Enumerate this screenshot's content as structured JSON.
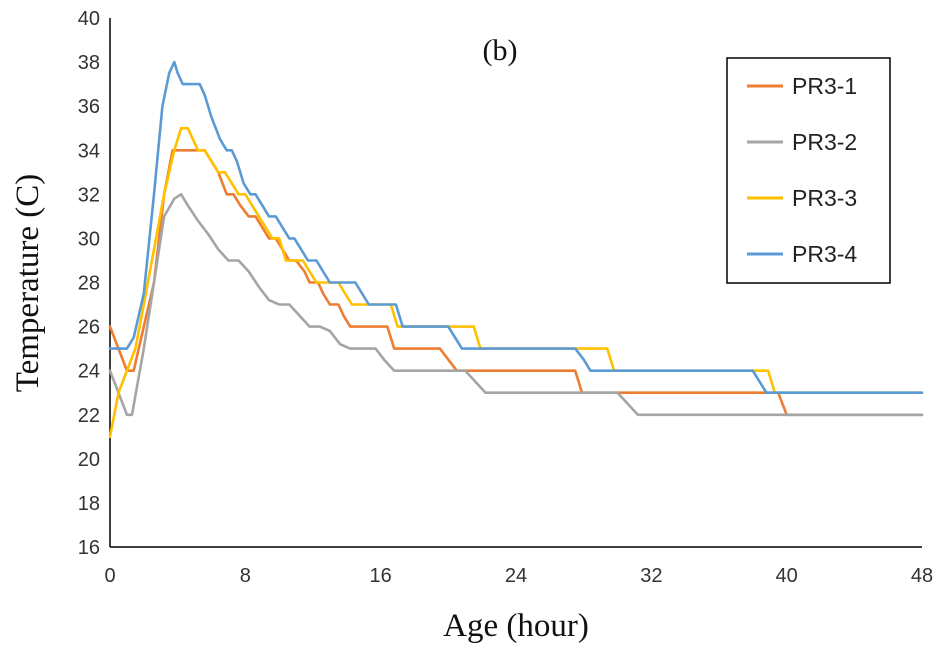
{
  "chart_data": {
    "type": "line",
    "title": "(b)",
    "xlabel": "Age (hour)",
    "ylabel": "Temperature (C)",
    "xlim": [
      0,
      48
    ],
    "ylim": [
      16,
      40
    ],
    "xticks": [
      0,
      8,
      16,
      24,
      32,
      40,
      48
    ],
    "yticks": [
      16,
      18,
      20,
      22,
      24,
      26,
      28,
      30,
      32,
      34,
      36,
      38,
      40
    ],
    "grid": false,
    "legend_position": "top-right",
    "series": [
      {
        "name": "PR3-1",
        "color": "#ED7D31",
        "points": [
          [
            0,
            26
          ],
          [
            0.5,
            25
          ],
          [
            1,
            24
          ],
          [
            1.4,
            24
          ],
          [
            2,
            26
          ],
          [
            2.6,
            28
          ],
          [
            3.2,
            32
          ],
          [
            3.7,
            34
          ],
          [
            4.5,
            34
          ],
          [
            5.2,
            34
          ],
          [
            5.6,
            34
          ],
          [
            6,
            33.5
          ],
          [
            6.4,
            33
          ],
          [
            6.9,
            32
          ],
          [
            7.3,
            32
          ],
          [
            7.7,
            31.5
          ],
          [
            8.2,
            31
          ],
          [
            8.6,
            31
          ],
          [
            9,
            30.5
          ],
          [
            9.4,
            30
          ],
          [
            9.8,
            30
          ],
          [
            10.2,
            29.5
          ],
          [
            10.6,
            29
          ],
          [
            11,
            29
          ],
          [
            11.5,
            28.5
          ],
          [
            11.8,
            28
          ],
          [
            12.3,
            28
          ],
          [
            12.6,
            27.5
          ],
          [
            13,
            27
          ],
          [
            13.5,
            27
          ],
          [
            13.8,
            26.5
          ],
          [
            14.2,
            26
          ],
          [
            16,
            26
          ],
          [
            16.4,
            26
          ],
          [
            16.8,
            25
          ],
          [
            19.5,
            25
          ],
          [
            20,
            24.5
          ],
          [
            20.5,
            24
          ],
          [
            27.5,
            24
          ],
          [
            27.9,
            23
          ],
          [
            39.5,
            23
          ],
          [
            40,
            22
          ],
          [
            48,
            22
          ]
        ]
      },
      {
        "name": "PR3-2",
        "color": "#A5A5A5",
        "points": [
          [
            0,
            24
          ],
          [
            0.5,
            23
          ],
          [
            1,
            22
          ],
          [
            1.3,
            22
          ],
          [
            2,
            25
          ],
          [
            2.6,
            28
          ],
          [
            3.2,
            31
          ],
          [
            3.8,
            31.8
          ],
          [
            4.2,
            32
          ],
          [
            4.6,
            31.5
          ],
          [
            5.2,
            30.8
          ],
          [
            5.8,
            30.2
          ],
          [
            6.4,
            29.5
          ],
          [
            7,
            29
          ],
          [
            7.6,
            29
          ],
          [
            8.2,
            28.5
          ],
          [
            8.8,
            27.8
          ],
          [
            9.4,
            27.2
          ],
          [
            10,
            27
          ],
          [
            10.6,
            27
          ],
          [
            11.2,
            26.5
          ],
          [
            11.8,
            26
          ],
          [
            12.4,
            26
          ],
          [
            13,
            25.8
          ],
          [
            13.6,
            25.2
          ],
          [
            14.2,
            25
          ],
          [
            15,
            25
          ],
          [
            15.7,
            25
          ],
          [
            16.2,
            24.5
          ],
          [
            16.8,
            24
          ],
          [
            17.4,
            24
          ],
          [
            21,
            24
          ],
          [
            21.6,
            23.5
          ],
          [
            22.2,
            23
          ],
          [
            23,
            23
          ],
          [
            30,
            23
          ],
          [
            30.6,
            22.5
          ],
          [
            31.2,
            22
          ],
          [
            48,
            22
          ]
        ]
      },
      {
        "name": "PR3-3",
        "color": "#FFC000",
        "points": [
          [
            0,
            21
          ],
          [
            0.5,
            23
          ],
          [
            1,
            24
          ],
          [
            1.5,
            25
          ],
          [
            2,
            27
          ],
          [
            2.6,
            29.5
          ],
          [
            3.2,
            32
          ],
          [
            3.8,
            34
          ],
          [
            4.2,
            35
          ],
          [
            4.6,
            35
          ],
          [
            5.2,
            34
          ],
          [
            5.6,
            34
          ],
          [
            6,
            33.5
          ],
          [
            6.4,
            33
          ],
          [
            6.8,
            33
          ],
          [
            7.2,
            32.5
          ],
          [
            7.6,
            32
          ],
          [
            8,
            32
          ],
          [
            8.4,
            31.5
          ],
          [
            8.8,
            31
          ],
          [
            9.2,
            30.5
          ],
          [
            9.6,
            30
          ],
          [
            10,
            30
          ],
          [
            10.4,
            29
          ],
          [
            11.4,
            29
          ],
          [
            11.8,
            28.5
          ],
          [
            12.2,
            28
          ],
          [
            13,
            28
          ],
          [
            13.5,
            28
          ],
          [
            13.9,
            27.5
          ],
          [
            14.3,
            27
          ],
          [
            16,
            27
          ],
          [
            16.6,
            27
          ],
          [
            17,
            26
          ],
          [
            21,
            26
          ],
          [
            21.5,
            26
          ],
          [
            21.9,
            25
          ],
          [
            28.5,
            25
          ],
          [
            29.4,
            25
          ],
          [
            29.8,
            24
          ],
          [
            38.5,
            24
          ],
          [
            38.9,
            24
          ],
          [
            39.3,
            23
          ],
          [
            48,
            23
          ]
        ]
      },
      {
        "name": "PR3-4",
        "color": "#5B9BD5",
        "points": [
          [
            0,
            25
          ],
          [
            0.5,
            25
          ],
          [
            1,
            25
          ],
          [
            1.4,
            25.5
          ],
          [
            2,
            27.5
          ],
          [
            2.6,
            32
          ],
          [
            3.1,
            36
          ],
          [
            3.5,
            37.5
          ],
          [
            3.8,
            38
          ],
          [
            4,
            37.5
          ],
          [
            4.3,
            37
          ],
          [
            4.9,
            37
          ],
          [
            5.3,
            37
          ],
          [
            5.6,
            36.5
          ],
          [
            6,
            35.5
          ],
          [
            6.5,
            34.5
          ],
          [
            6.9,
            34
          ],
          [
            7.2,
            34
          ],
          [
            7.5,
            33.5
          ],
          [
            7.9,
            32.5
          ],
          [
            8.3,
            32
          ],
          [
            8.6,
            32
          ],
          [
            9,
            31.5
          ],
          [
            9.4,
            31
          ],
          [
            9.8,
            31
          ],
          [
            10.2,
            30.5
          ],
          [
            10.6,
            30
          ],
          [
            10.9,
            30
          ],
          [
            11.3,
            29.5
          ],
          [
            11.7,
            29
          ],
          [
            12.2,
            29
          ],
          [
            12.6,
            28.5
          ],
          [
            13,
            28
          ],
          [
            14,
            28
          ],
          [
            14.5,
            28
          ],
          [
            14.9,
            27.5
          ],
          [
            15.3,
            27
          ],
          [
            16.5,
            27
          ],
          [
            16.9,
            27
          ],
          [
            17.3,
            26
          ],
          [
            20,
            26
          ],
          [
            20.4,
            25.5
          ],
          [
            20.8,
            25
          ],
          [
            27.5,
            25
          ],
          [
            28,
            24.5
          ],
          [
            28.4,
            24
          ],
          [
            38,
            24
          ],
          [
            38.4,
            23.5
          ],
          [
            38.8,
            23
          ],
          [
            48,
            23
          ]
        ]
      }
    ]
  }
}
